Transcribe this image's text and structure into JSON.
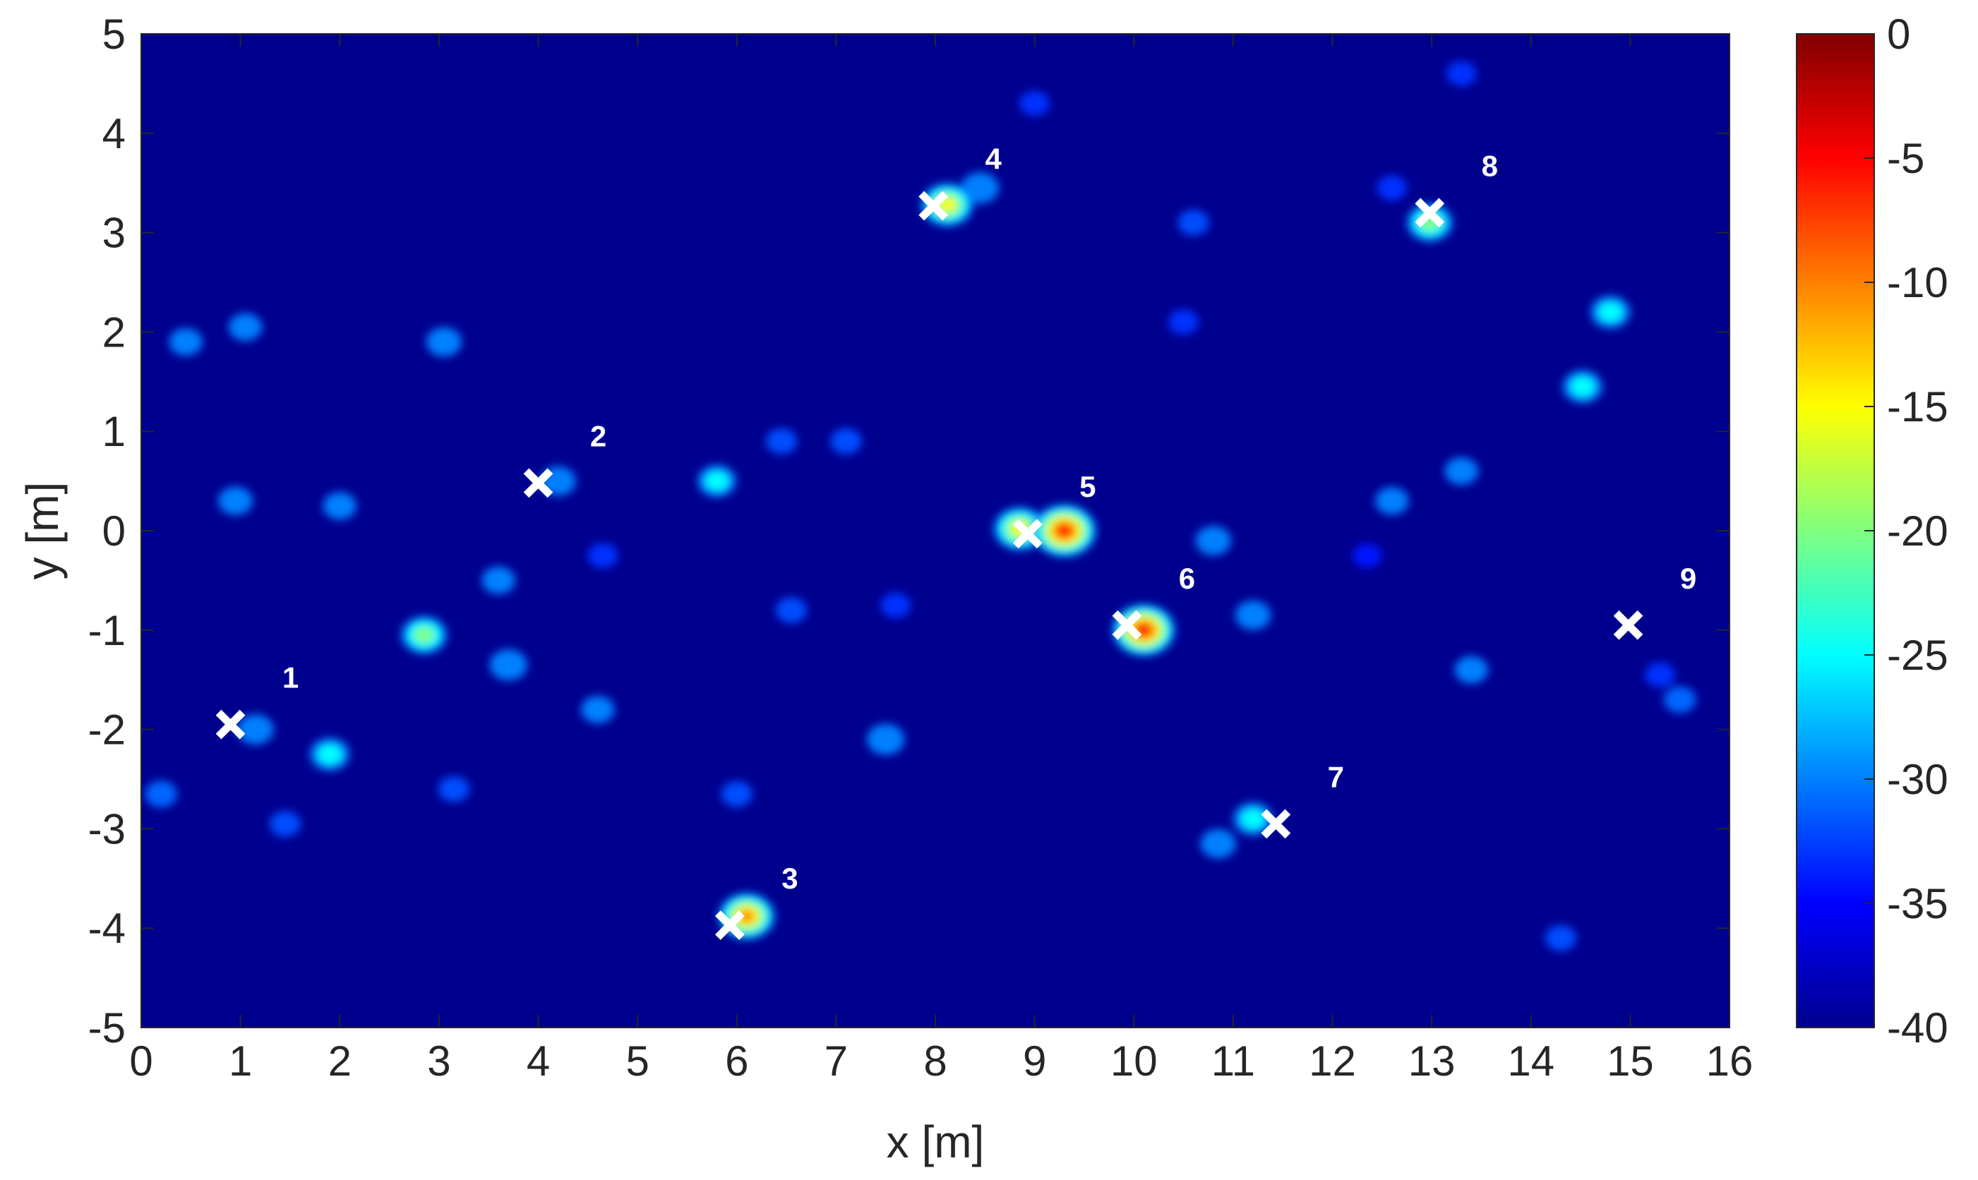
{
  "chart_data": {
    "type": "heatmap",
    "title": "",
    "xlabel": "x [m]",
    "ylabel": "y [m]",
    "xlim": [
      0,
      16
    ],
    "ylim": [
      -5,
      5
    ],
    "x_ticks": [
      "0",
      "1",
      "2",
      "3",
      "4",
      "5",
      "6",
      "7",
      "8",
      "9",
      "10",
      "11",
      "12",
      "13",
      "14",
      "15",
      "16"
    ],
    "y_ticks": [
      "5",
      "4",
      "3",
      "2",
      "1",
      "0",
      "-1",
      "-2",
      "-3",
      "-4",
      "-5"
    ],
    "colorbar": {
      "range": [
        -40,
        0
      ],
      "colormap": "jet",
      "ticks": [
        "0",
        "-5",
        "-10",
        "-15",
        "-20",
        "-25",
        "-30",
        "-35",
        "-40"
      ]
    },
    "markers": [
      {
        "label": "1",
        "x": 0.9,
        "y": -1.95
      },
      {
        "label": "2",
        "x": 4.0,
        "y": 0.48
      },
      {
        "label": "3",
        "x": 5.93,
        "y": -3.97
      },
      {
        "label": "4",
        "x": 7.98,
        "y": 3.27
      },
      {
        "label": "5",
        "x": 8.93,
        "y": -0.03
      },
      {
        "label": "6",
        "x": 9.93,
        "y": -0.95
      },
      {
        "label": "7",
        "x": 11.43,
        "y": -2.95
      },
      {
        "label": "8",
        "x": 12.98,
        "y": 3.2
      },
      {
        "label": "9",
        "x": 14.98,
        "y": -0.95
      }
    ],
    "hotspots": [
      {
        "x": 1.15,
        "y": -2.0,
        "level": -27
      },
      {
        "x": 4.2,
        "y": 0.5,
        "level": -28
      },
      {
        "x": 6.1,
        "y": -3.88,
        "level": -8
      },
      {
        "x": 8.12,
        "y": 3.28,
        "level": -12
      },
      {
        "x": 8.45,
        "y": 3.45,
        "level": -26
      },
      {
        "x": 8.85,
        "y": 0.02,
        "level": -12
      },
      {
        "x": 9.3,
        "y": 0.0,
        "level": -1
      },
      {
        "x": 10.1,
        "y": -1.0,
        "level": -2
      },
      {
        "x": 11.2,
        "y": -2.9,
        "level": -24
      },
      {
        "x": 12.98,
        "y": 3.1,
        "level": -18
      },
      {
        "x": 2.85,
        "y": -1.05,
        "level": -18
      },
      {
        "x": 5.8,
        "y": 0.5,
        "level": -25
      },
      {
        "x": 14.8,
        "y": 2.2,
        "level": -24
      },
      {
        "x": 14.52,
        "y": 1.45,
        "level": -24
      },
      {
        "x": 1.9,
        "y": -2.25,
        "level": -24
      },
      {
        "x": 3.7,
        "y": -1.35,
        "level": -26
      },
      {
        "x": 3.05,
        "y": 1.9,
        "level": -28
      },
      {
        "x": 7.5,
        "y": -2.1,
        "level": -26
      },
      {
        "x": 10.8,
        "y": -0.1,
        "level": -28
      },
      {
        "x": 11.2,
        "y": -0.85,
        "level": -28
      },
      {
        "x": 10.85,
        "y": -3.15,
        "level": -28
      },
      {
        "x": 0.95,
        "y": 0.3,
        "level": -29
      },
      {
        "x": 0.45,
        "y": 1.9,
        "level": -30
      },
      {
        "x": 1.05,
        "y": 2.05,
        "level": -30
      },
      {
        "x": 4.6,
        "y": -1.8,
        "level": -30
      },
      {
        "x": 2.0,
        "y": 0.25,
        "level": -30
      },
      {
        "x": 3.6,
        "y": -0.5,
        "level": -30
      },
      {
        "x": 13.4,
        "y": -1.4,
        "level": -30
      },
      {
        "x": 13.3,
        "y": 0.6,
        "level": -30
      },
      {
        "x": 12.6,
        "y": 0.3,
        "level": -30
      },
      {
        "x": 15.5,
        "y": -1.7,
        "level": -31
      },
      {
        "x": 0.2,
        "y": -2.65,
        "level": -31
      },
      {
        "x": 1.45,
        "y": -2.95,
        "level": -32
      },
      {
        "x": 6.55,
        "y": -0.8,
        "level": -32
      },
      {
        "x": 6.45,
        "y": 0.9,
        "level": -32
      },
      {
        "x": 7.1,
        "y": 0.9,
        "level": -32
      },
      {
        "x": 10.6,
        "y": 3.1,
        "level": -32
      },
      {
        "x": 10.5,
        "y": 2.1,
        "level": -33
      },
      {
        "x": 12.6,
        "y": 3.45,
        "level": -33
      },
      {
        "x": 14.3,
        "y": -4.1,
        "level": -32
      },
      {
        "x": 15.3,
        "y": -1.45,
        "level": -33
      },
      {
        "x": 6.0,
        "y": -2.65,
        "level": -32
      },
      {
        "x": 3.15,
        "y": -2.6,
        "level": -32
      },
      {
        "x": 9.0,
        "y": 4.3,
        "level": -33
      },
      {
        "x": 13.3,
        "y": 4.6,
        "level": -33
      },
      {
        "x": 4.65,
        "y": -0.25,
        "level": -33
      },
      {
        "x": 12.35,
        "y": -0.25,
        "level": -34
      },
      {
        "x": 7.6,
        "y": -0.75,
        "level": -33
      }
    ]
  }
}
